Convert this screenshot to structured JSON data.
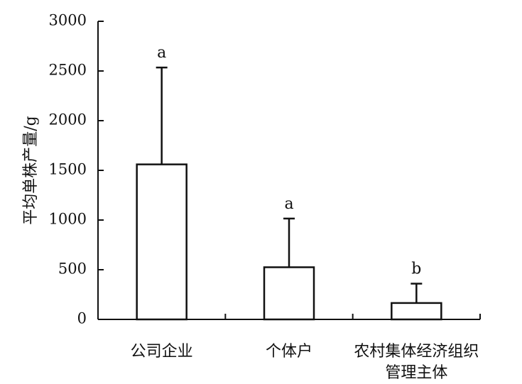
{
  "chart_data": {
    "type": "bar",
    "title": "",
    "xlabel": "",
    "ylabel": "平均单株产量/g",
    "ylim": [
      0,
      3000
    ],
    "yticks": [
      0,
      500,
      1000,
      1500,
      2000,
      2500,
      3000
    ],
    "grid": false,
    "categories": [
      [
        "公司企业"
      ],
      [
        "个体户"
      ],
      [
        "农村集体经济组织",
        "管理主体"
      ]
    ],
    "series": [
      {
        "values": [
          1560,
          525,
          165
        ],
        "error_upper": [
          975,
          490,
          195
        ],
        "significance": [
          "a",
          "a",
          "b"
        ]
      }
    ]
  }
}
